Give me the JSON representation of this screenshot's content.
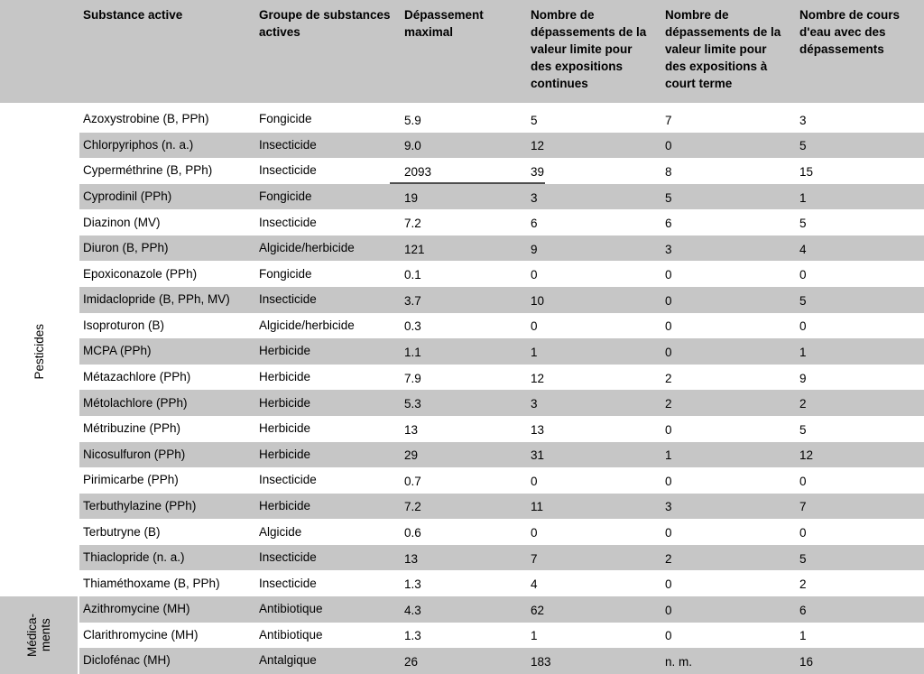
{
  "table": {
    "header": {
      "substance": "Substance active",
      "group": "Groupe de substances actives",
      "max_exceedance": "Dépassement maximal",
      "exceed_chronic": "Nombre de dépassements de la valeur limite pour des expositions continues",
      "exceed_acute": "Nombre de dépassements de la valeur limite pour des expositions à court terme",
      "watercourses": "Nombre de cours d'eau avec des dépassements"
    },
    "groups": [
      {
        "label": "Pesticides",
        "shaded": false,
        "rows": [
          {
            "substance": "Azoxystrobine (B, PPh)",
            "group": "Fongicide",
            "max": "5.9",
            "chronic": "5",
            "acute": "7",
            "watercourses": "3"
          },
          {
            "substance": "Chlorpyriphos (n. a.)",
            "group": "Insecticide",
            "max": "9.0",
            "chronic": "12",
            "acute": "0",
            "watercourses": "5"
          },
          {
            "substance": "Cyperméthrine (B, PPh)",
            "group": "Insecticide",
            "max": "2093",
            "chronic": "39",
            "acute": "8",
            "watercourses": "15",
            "max_underlined": true
          },
          {
            "substance": "Cyprodinil (PPh)",
            "group": "Fongicide",
            "max": "19",
            "chronic": "3",
            "acute": "5",
            "watercourses": "1"
          },
          {
            "substance": "Diazinon (MV)",
            "group": "Insecticide",
            "max": "7.2",
            "chronic": "6",
            "acute": "6",
            "watercourses": "5"
          },
          {
            "substance": "Diuron (B, PPh)",
            "group": "Algicide/herbicide",
            "max": "121",
            "chronic": "9",
            "acute": "3",
            "watercourses": "4"
          },
          {
            "substance": "Epoxiconazole (PPh)",
            "group": "Fongicide",
            "max": "0.1",
            "chronic": "0",
            "acute": "0",
            "watercourses": "0"
          },
          {
            "substance": "Imidaclopride (B, PPh, MV)",
            "group": "Insecticide",
            "max": "3.7",
            "chronic": "10",
            "acute": "0",
            "watercourses": "5"
          },
          {
            "substance": "Isoproturon (B)",
            "group": "Algicide/herbicide",
            "max": "0.3",
            "chronic": "0",
            "acute": "0",
            "watercourses": "0"
          },
          {
            "substance": "MCPA (PPh)",
            "group": "Herbicide",
            "max": "1.1",
            "chronic": "1",
            "acute": "0",
            "watercourses": "1"
          },
          {
            "substance": "Métazachlore (PPh)",
            "group": "Herbicide",
            "max": "7.9",
            "chronic": "12",
            "acute": "2",
            "watercourses": "9"
          },
          {
            "substance": "Métolachlore (PPh)",
            "group": "Herbicide",
            "max": "5.3",
            "chronic": "3",
            "acute": "2",
            "watercourses": "2"
          },
          {
            "substance": "Métribuzine (PPh)",
            "group": "Herbicide",
            "max": "13",
            "chronic": "13",
            "acute": "0",
            "watercourses": "5"
          },
          {
            "substance": "Nicosulfuron (PPh)",
            "group": "Herbicide",
            "max": "29",
            "chronic": "31",
            "acute": "1",
            "watercourses": "12"
          },
          {
            "substance": "Pirimicarbe (PPh)",
            "group": "Insecticide",
            "max": "0.7",
            "chronic": "0",
            "acute": "0",
            "watercourses": "0"
          },
          {
            "substance": "Terbuthylazine (PPh)",
            "group": "Herbicide",
            "max": "7.2",
            "chronic": "11",
            "acute": "3",
            "watercourses": "7"
          },
          {
            "substance": "Terbutryne (B)",
            "group": "Algicide",
            "max": "0.6",
            "chronic": "0",
            "acute": "0",
            "watercourses": "0"
          },
          {
            "substance": "Thiaclopride (n. a.)",
            "group": "Insecticide",
            "max": "13",
            "chronic": "7",
            "acute": "2",
            "watercourses": "5"
          },
          {
            "substance": "Thiaméthoxame (B, PPh)",
            "group": "Insecticide",
            "max": "1.3",
            "chronic": "4",
            "acute": "0",
            "watercourses": "2"
          }
        ]
      },
      {
        "label": "Médica-\nments",
        "shaded": true,
        "rows": [
          {
            "substance": "Azithromycine (MH)",
            "group": "Antibiotique",
            "max": "4.3",
            "chronic": "62",
            "acute": "0",
            "watercourses": "6"
          },
          {
            "substance": "Clarithromycine (MH)",
            "group": "Antibiotique",
            "max": "1.3",
            "chronic": "1",
            "acute": "0",
            "watercourses": "1"
          },
          {
            "substance": "Diclofénac (MH)",
            "group": "Antalgique",
            "max": "26",
            "chronic": "183",
            "acute": "n. m.",
            "watercourses": "16"
          }
        ]
      }
    ],
    "colors": {
      "row_shade": "#c6c6c6",
      "header_shade": "#c6c6c6",
      "underline": "#4d4d4d"
    }
  }
}
